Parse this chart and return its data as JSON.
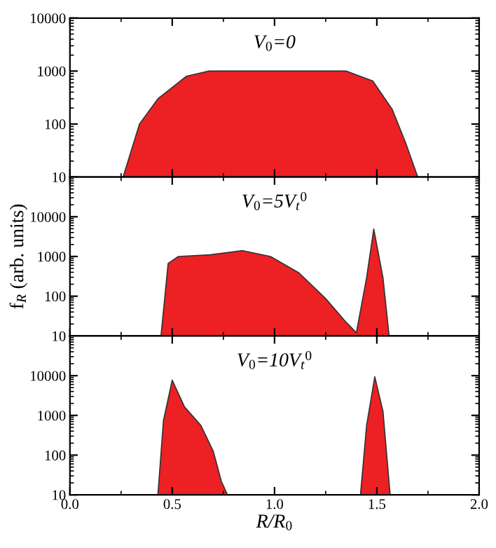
{
  "chart_data": [
    {
      "type": "area",
      "title": "V$_{0}$=0",
      "xlim": [
        0,
        2
      ],
      "ylim": [
        10,
        10000
      ],
      "log": true,
      "xticks": [
        {
          "value": 0,
          "label": null
        },
        {
          "value": 0.5,
          "label": null
        },
        {
          "value": 1,
          "label": null
        },
        {
          "value": 1.5,
          "label": null
        },
        {
          "value": 2,
          "label": null
        }
      ],
      "yticks": [
        10,
        100,
        1000,
        10000
      ],
      "tick_labels": "y",
      "series": [
        {
          "color": "#ed2024",
          "x": [
            0.26,
            0.34,
            0.43,
            0.57,
            0.68,
            1.0,
            1.35,
            1.48,
            1.575,
            1.64,
            1.7
          ],
          "values": [
            10,
            100,
            300,
            800,
            1000,
            1000,
            1000,
            650,
            190,
            45,
            10
          ]
        }
      ]
    },
    {
      "type": "area",
      "title": "V$_{0}$=5V$_{t}$$^{0}$",
      "ylabel": "f$_{R}$ (arb. units)",
      "xlim": [
        0,
        2
      ],
      "ylim": [
        10,
        100000
      ],
      "log": true,
      "xticks": [
        {
          "value": 0,
          "label": null
        },
        {
          "value": 0.5,
          "label": null
        },
        {
          "value": 1,
          "label": null
        },
        {
          "value": 1.5,
          "label": null
        },
        {
          "value": 2,
          "label": null
        }
      ],
      "yticks": [
        10,
        100,
        1000,
        10000
      ],
      "tick_labels": "y",
      "series": [
        {
          "color": "#ed2024",
          "x": [
            0.445,
            0.48,
            0.53,
            0.685,
            0.845,
            0.98,
            1.12,
            1.25,
            1.35,
            1.4,
            1.45,
            1.485,
            1.53,
            1.56
          ],
          "values": [
            10,
            670,
            1000,
            1100,
            1400,
            1000,
            385,
            87,
            22,
            12,
            290,
            4900,
            290,
            10
          ]
        }
      ]
    },
    {
      "type": "area",
      "title": "V$_{0}$=10V$_{t}$$^{0}$",
      "xlabel": "R/R$_{0}$",
      "xlim": [
        0,
        2
      ],
      "ylim": [
        10,
        100000
      ],
      "log": true,
      "xticks": [
        {
          "value": 0,
          "label": "0.0"
        },
        {
          "value": 0.5,
          "label": "0.5"
        },
        {
          "value": 1,
          "label": "1.0"
        },
        {
          "value": 1.5,
          "label": "1.5"
        },
        {
          "value": 2,
          "label": "2.0"
        }
      ],
      "yticks": [
        10,
        100,
        1000,
        10000
      ],
      "series": [
        {
          "color": "#ed2024",
          "x": [
            0.43,
            0.457,
            0.5,
            0.56,
            0.64,
            0.7,
            0.74,
            0.77,
            1.42,
            1.45,
            1.49,
            1.53,
            1.565
          ],
          "values": [
            10,
            730,
            7700,
            1640,
            560,
            127,
            22,
            10,
            10,
            560,
            9400,
            1260,
            10
          ]
        }
      ]
    }
  ]
}
